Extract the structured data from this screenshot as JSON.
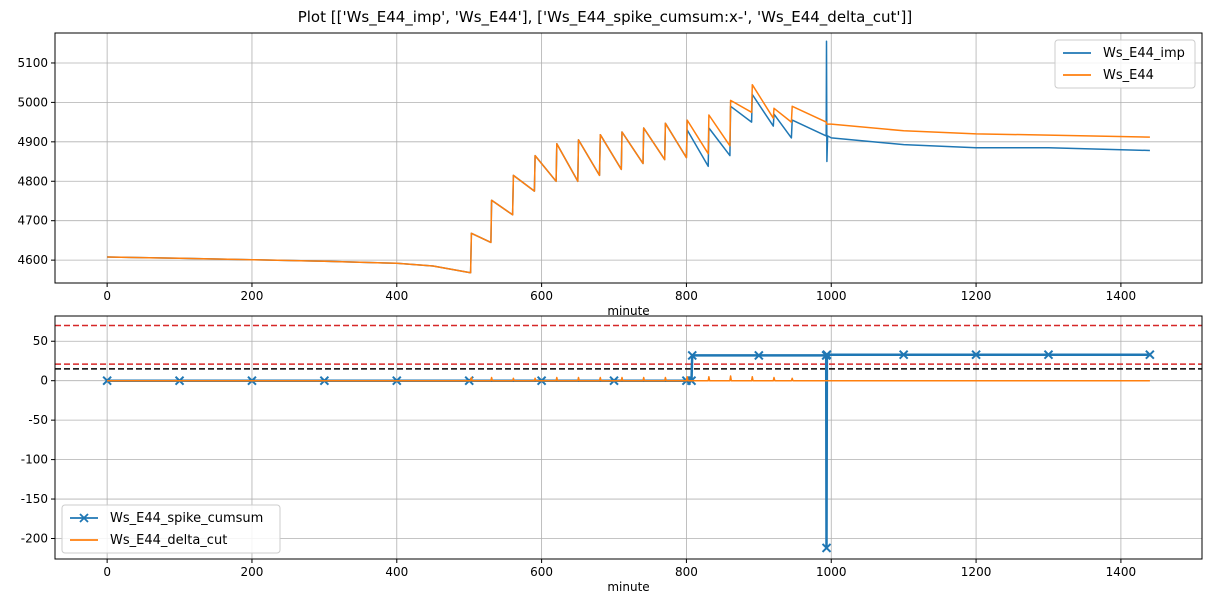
{
  "figure": {
    "suptitle": "Plot [['Ws_E44_imp', 'Ws_E44'], ['Ws_E44_spike_cumsum:x-', 'Ws_E44_delta_cut']]"
  },
  "colors": {
    "blue": "#1f77b4",
    "orange": "#ff7f0e",
    "red": "#d62728",
    "black": "#000000",
    "grid": "#b0b0b0"
  },
  "chart_data": [
    {
      "type": "line",
      "xlabel": "minute",
      "ylabel": "",
      "xlim": [
        -72,
        1512
      ],
      "ylim": [
        4542,
        5176
      ],
      "xticks": [
        0,
        200,
        400,
        600,
        800,
        1000,
        1200,
        1400
      ],
      "xtick_labels": [
        "0",
        "200",
        "400",
        "600",
        "800",
        "1000",
        "1200",
        "1400"
      ],
      "yticks": [
        4600,
        4700,
        4800,
        4900,
        5000,
        5100
      ],
      "ytick_labels": [
        "4600",
        "4700",
        "4800",
        "4900",
        "5000",
        "5100"
      ],
      "grid": true,
      "legend_position": "upper right",
      "series": [
        {
          "name": "Ws_E44_imp",
          "color": "blue",
          "marker": "none",
          "x": [
            0,
            100,
            200,
            300,
            400,
            450,
            502,
            503,
            530,
            531,
            560,
            561,
            590,
            591,
            620,
            621,
            650,
            651,
            680,
            681,
            710,
            711,
            740,
            741,
            770,
            771,
            800,
            801,
            830,
            831,
            860,
            861,
            890,
            891,
            920,
            921,
            945,
            946,
            993,
            993.5,
            994,
            995,
            1000,
            1100,
            1200,
            1300,
            1440
          ],
          "y": [
            4608,
            4605,
            4601,
            4597,
            4592,
            4585,
            4568,
            4668,
            4645,
            4752,
            4715,
            4815,
            4775,
            4865,
            4800,
            4895,
            4800,
            4905,
            4815,
            4918,
            4830,
            4925,
            4845,
            4935,
            4855,
            4947,
            4860,
            4930,
            4838,
            4935,
            4865,
            4990,
            4950,
            5020,
            4940,
            4970,
            4910,
            4955,
            4915,
            5155,
            4850,
            4915,
            4910,
            4893,
            4885,
            4885,
            4878
          ]
        },
        {
          "name": "Ws_E44",
          "color": "orange",
          "marker": "none",
          "x": [
            0,
            100,
            200,
            300,
            400,
            450,
            502,
            503,
            530,
            531,
            560,
            561,
            590,
            591,
            620,
            621,
            650,
            651,
            680,
            681,
            710,
            711,
            740,
            741,
            770,
            771,
            800,
            801,
            830,
            831,
            860,
            861,
            890,
            891,
            920,
            921,
            945,
            946,
            993,
            993.5,
            994,
            995,
            1000,
            1100,
            1200,
            1300,
            1440
          ],
          "y": [
            4608,
            4605,
            4601,
            4597,
            4592,
            4585,
            4568,
            4668,
            4645,
            4752,
            4715,
            4815,
            4775,
            4865,
            4800,
            4895,
            4800,
            4905,
            4815,
            4918,
            4830,
            4925,
            4845,
            4935,
            4855,
            4947,
            4860,
            4955,
            4870,
            4968,
            4890,
            5005,
            4975,
            5045,
            4960,
            4985,
            4950,
            4990,
            4950,
            4945,
            4945,
            4945,
            4945,
            4928,
            4920,
            4917,
            4912
          ]
        }
      ]
    },
    {
      "type": "line",
      "xlabel": "minute",
      "ylabel": "",
      "xlim": [
        -72,
        1512
      ],
      "ylim": [
        -226,
        82
      ],
      "xticks": [
        0,
        200,
        400,
        600,
        800,
        1000,
        1200,
        1400
      ],
      "xtick_labels": [
        "0",
        "200",
        "400",
        "600",
        "800",
        "1000",
        "1200",
        "1400"
      ],
      "yticks": [
        -200,
        -150,
        -100,
        -50,
        0,
        50
      ],
      "ytick_labels": [
        "-200",
        "-150",
        "-100",
        "-50",
        "0",
        "50"
      ],
      "grid": true,
      "legend_position": "lower left",
      "hlines": [
        {
          "y": 70,
          "color": "red",
          "style": "dashed"
        },
        {
          "y": 21,
          "color": "red",
          "style": "dashed"
        },
        {
          "y": 15,
          "color": "black",
          "style": "dashed"
        }
      ],
      "series": [
        {
          "name": "Ws_E44_spike_cumsum",
          "color": "blue",
          "marker": "x",
          "x": [
            0,
            100,
            200,
            300,
            400,
            500,
            600,
            700,
            800,
            807,
            808,
            900,
            993,
            993.5,
            994,
            1100,
            1200,
            1300,
            1440
          ],
          "y": [
            0,
            0,
            0,
            0,
            0,
            0,
            0,
            0,
            0,
            0,
            32,
            32,
            32,
            -212,
            33,
            33,
            33,
            33,
            33
          ]
        },
        {
          "name": "Ws_E44_delta_cut",
          "color": "orange",
          "marker": "none",
          "x": [
            0,
            500,
            502,
            503,
            504,
            530,
            531,
            532,
            560,
            561,
            562,
            590,
            591,
            592,
            620,
            621,
            622,
            650,
            651,
            652,
            680,
            681,
            682,
            710,
            711,
            712,
            740,
            741,
            742,
            770,
            771,
            772,
            800,
            801,
            802,
            830,
            831,
            832,
            860,
            861,
            862,
            890,
            891,
            892,
            920,
            921,
            922,
            945,
            946,
            947,
            1000,
            1440
          ],
          "y": [
            0,
            0,
            0,
            4,
            0,
            0,
            4,
            0,
            0,
            3,
            0,
            0,
            3,
            0,
            0,
            4,
            0,
            0,
            4,
            0,
            0,
            4,
            0,
            0,
            4,
            0,
            0,
            4,
            0,
            0,
            4,
            0,
            0,
            5,
            0,
            0,
            5,
            0,
            0,
            6,
            0,
            0,
            5,
            0,
            0,
            4,
            0,
            0,
            3,
            0,
            0,
            0
          ]
        }
      ]
    }
  ]
}
